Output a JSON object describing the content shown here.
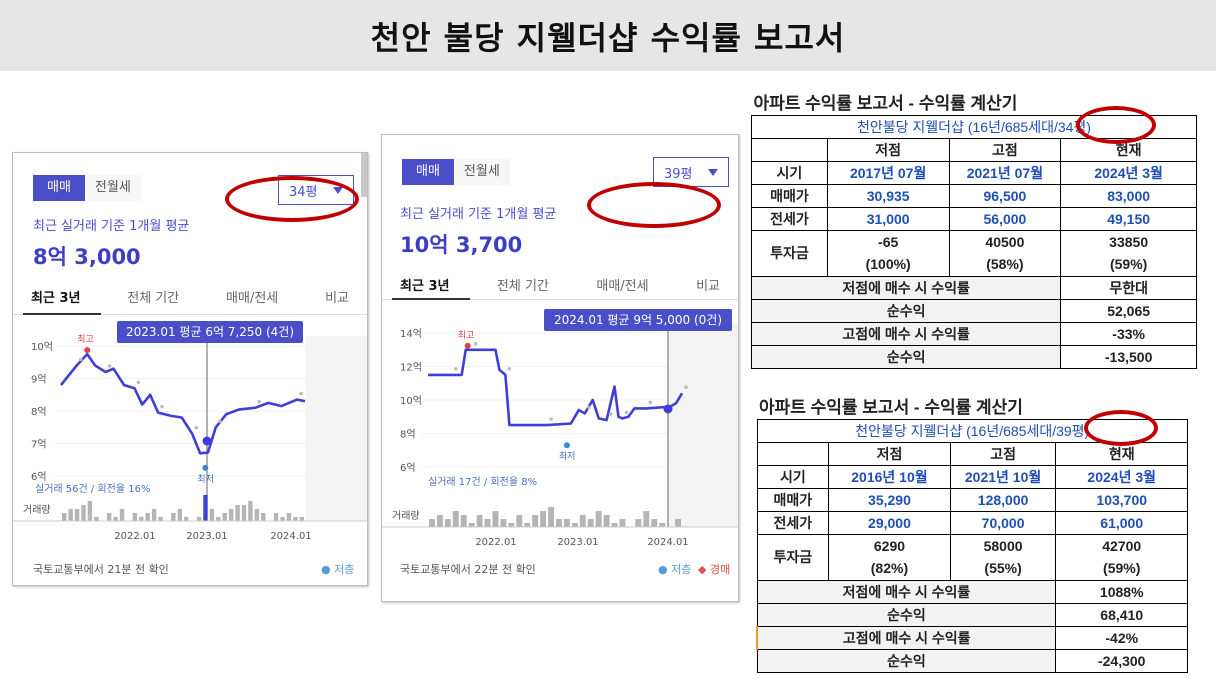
{
  "header": {
    "title": "천안 불당 지웰더샵 수익률 보고서"
  },
  "panel1": {
    "tab_sale": "매매",
    "tab_rent": "전월세",
    "size": "34평",
    "avg_label": "최근 실거래 기준 1개월 평균",
    "avg_value": "8억 3,000",
    "tabs": [
      "최근 3년",
      "전체 기간",
      "매매/전세",
      "비교"
    ],
    "footer": "국토교통부에서 21분 전 확인",
    "legend": "● 저층"
  },
  "panel2": {
    "tab_sale": "매매",
    "tab_rent": "전월세",
    "size": "39평",
    "avg_label": "최근 실거래 기준 1개월 평균",
    "avg_value": "10억 3,700",
    "tabs": [
      "최근 3년",
      "전체 기간",
      "매매/전세",
      "비교"
    ],
    "footer": "국토교통부에서 22분 전 확인",
    "legend_low": "● 저층",
    "legend_auction": "◆ 경매"
  },
  "chart_data": [
    {
      "type": "line",
      "title": "",
      "ylabel": "",
      "yticks": [
        "6억",
        "7억",
        "8억",
        "9억",
        "10억"
      ],
      "ylim": [
        6,
        10
      ],
      "xticks": [
        "2022.01",
        "2023.01",
        "2024.01"
      ],
      "series": [
        {
          "values": [
            [
              0.0,
              8.8
            ],
            [
              0.6,
              9.4
            ],
            [
              1.0,
              9.75
            ],
            [
              1.3,
              9.4
            ],
            [
              1.7,
              9.2
            ],
            [
              2.0,
              9.3
            ],
            [
              2.4,
              8.8
            ],
            [
              2.8,
              8.7
            ],
            [
              3.1,
              8.2
            ],
            [
              3.4,
              8.5
            ],
            [
              3.7,
              7.95
            ],
            [
              4.2,
              7.85
            ],
            [
              4.6,
              7.8
            ],
            [
              5.0,
              7.3
            ],
            [
              5.3,
              6.7
            ],
            [
              5.6,
              6.72
            ],
            [
              5.9,
              7.5
            ],
            [
              6.3,
              7.9
            ],
            [
              6.8,
              8.05
            ],
            [
              7.4,
              8.1
            ],
            [
              7.9,
              8.25
            ],
            [
              8.4,
              8.15
            ],
            [
              9.0,
              8.35
            ],
            [
              9.3,
              8.3
            ]
          ]
        }
      ],
      "annotations": [
        {
          "text": "최고",
          "x": 1.0,
          "y": 9.75
        },
        {
          "text": "최저",
          "x": 5.5,
          "y": 6.25
        }
      ],
      "tooltip": "2023.01 평균 6억 7,250 (4건)",
      "volume_label": "거래량",
      "volume": [
        2,
        3,
        3,
        4,
        5,
        1,
        0,
        2,
        1,
        3,
        0,
        2,
        1,
        2,
        3,
        1,
        0,
        2,
        3,
        1,
        0,
        1,
        6,
        3,
        1,
        2,
        3,
        4,
        4,
        5,
        3,
        2,
        0,
        2,
        1,
        2,
        1,
        1
      ],
      "stats": "실거래 56건 / 회전율 16%"
    },
    {
      "type": "line",
      "title": "",
      "ylabel": "",
      "yticks": [
        "6억",
        "8억",
        "10억",
        "12억",
        "14억"
      ],
      "ylim": [
        6,
        14
      ],
      "xticks": [
        "2022.01",
        "2023.01",
        "2024.01"
      ],
      "series": [
        {
          "values": [
            [
              0.0,
              11.5
            ],
            [
              1.2,
              11.5
            ],
            [
              1.7,
              11.5
            ],
            [
              1.9,
              13.0
            ],
            [
              2.2,
              13.0
            ],
            [
              3.4,
              13.0
            ],
            [
              3.6,
              11.8
            ],
            [
              3.9,
              11.5
            ],
            [
              4.1,
              8.5
            ],
            [
              5.0,
              8.5
            ],
            [
              6.0,
              8.5
            ],
            [
              7.2,
              8.6
            ],
            [
              7.6,
              9.4
            ],
            [
              7.9,
              9.2
            ],
            [
              8.3,
              10.0
            ],
            [
              8.6,
              8.9
            ],
            [
              9.0,
              8.8
            ],
            [
              9.4,
              10.8
            ],
            [
              9.6,
              9.0
            ],
            [
              9.8,
              8.9
            ],
            [
              10.1,
              9.0
            ],
            [
              10.4,
              9.5
            ],
            [
              11.0,
              9.5
            ],
            [
              12.2,
              9.6
            ],
            [
              12.5,
              9.8
            ],
            [
              12.8,
              10.4
            ]
          ]
        }
      ],
      "annotations": [
        {
          "text": "최고",
          "x": 2.0,
          "y": 13.0
        },
        {
          "text": "최저",
          "x": 7.0,
          "y": 7.3
        }
      ],
      "tooltip": "2024.01 평균 9억 5,000 (0건)",
      "volume_label": "거래량",
      "volume": [
        2,
        3,
        2,
        4,
        3,
        1,
        3,
        2,
        4,
        2,
        1,
        3,
        1,
        3,
        4,
        5,
        2,
        2,
        1,
        3,
        2,
        4,
        3,
        1,
        2,
        0,
        2,
        4,
        2,
        1,
        0,
        2
      ],
      "stats": "실거래 17건 / 회전율 8%"
    }
  ],
  "tables": [
    {
      "title": "아파트 수익률 보고서 - 수익률 계산기",
      "subtitle": "천안불당 지웰더샵 (16년/685세대/34평)",
      "headers": [
        "저점",
        "고점",
        "현재"
      ],
      "period_label": "시기",
      "periods": [
        "2017년 07월",
        "2021년 07월",
        "2024년 3월"
      ],
      "sale_label": "매매가",
      "sale": [
        "30,935",
        "96,500",
        "83,000"
      ],
      "lease_label": "전세가",
      "lease": [
        "31,000",
        "56,000",
        "49,150"
      ],
      "invest_label": "투자금",
      "invest": [
        "-65",
        "40500",
        "33850"
      ],
      "invest_pct": [
        "(100%)",
        "(58%)",
        "(59%)"
      ],
      "low_buy_label": "저점에 매수 시 수익률",
      "low_buy_value": "무한대",
      "low_profit_label": "순수익",
      "low_profit_value": "52,065",
      "high_buy_label": "고점에 매수 시 수익률",
      "high_buy_value": "-33%",
      "high_profit_label": "순수익",
      "high_profit_value": "-13,500"
    },
    {
      "title": "아파트 수익률 보고서 - 수익률 계산기",
      "subtitle": "천안불당 지웰더샵 (16년/685세대/39평)",
      "headers": [
        "저점",
        "고점",
        "현재"
      ],
      "period_label": "시기",
      "periods": [
        "2016년 10월",
        "2021년 10월",
        "2024년 3월"
      ],
      "sale_label": "매매가",
      "sale": [
        "35,290",
        "128,000",
        "103,700"
      ],
      "lease_label": "전세가",
      "lease": [
        "29,000",
        "70,000",
        "61,000"
      ],
      "invest_label": "투자금",
      "invest": [
        "6290",
        "58000",
        "42700"
      ],
      "invest_pct": [
        "(82%)",
        "(55%)",
        "(59%)"
      ],
      "low_buy_label": "저점에 매수 시 수익률",
      "low_buy_value": "1088%",
      "low_profit_label": "순수익",
      "low_profit_value": "68,410",
      "high_buy_label": "고점에 매수 시 수익률",
      "high_buy_value": "-42%",
      "high_profit_label": "순수익",
      "high_profit_value": "-24,300"
    }
  ],
  "colors": {
    "accent": "#4a4fc9",
    "line": "#3f3fd8",
    "highlight": "#c00000",
    "table_blue": "#1f4fb5"
  }
}
